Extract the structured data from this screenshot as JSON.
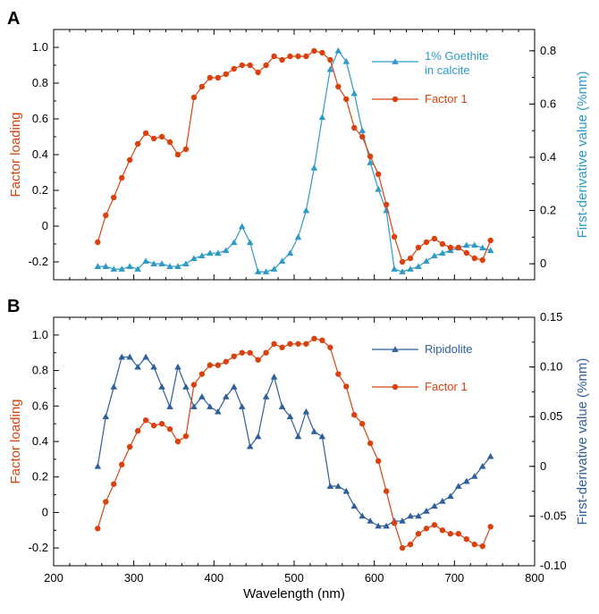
{
  "chart_data": [
    {
      "type": "line",
      "panel_label": "A",
      "ylabel_left": "Factor loading",
      "ylabel_right": "First-derivative value (%nm)",
      "xlabel": "",
      "xlim": [
        200,
        800
      ],
      "ylim_left": [
        -0.3,
        1.1
      ],
      "ylim_right": [
        -0.06,
        0.88
      ],
      "yticks_left": [
        "-0.2",
        "0",
        "0.2",
        "0.4",
        "0.6",
        "0.8",
        "1.0"
      ],
      "yticks_right": [
        "0",
        "0.2",
        "0.4",
        "0.6",
        "0.8"
      ],
      "legend_position": "top-right",
      "series": [
        {
          "name": "1% Goethite in calcite",
          "axis": "right",
          "marker": "triangle",
          "color": "#2E9BC6",
          "x": [
            255,
            265,
            275,
            285,
            295,
            305,
            315,
            325,
            335,
            345,
            355,
            365,
            375,
            385,
            395,
            405,
            415,
            425,
            435,
            445,
            455,
            465,
            475,
            485,
            495,
            505,
            515,
            525,
            535,
            545,
            555,
            565,
            575,
            585,
            595,
            605,
            615,
            625,
            635,
            645,
            655,
            665,
            675,
            685,
            695,
            705,
            715,
            725,
            735,
            745
          ],
          "y": [
            -0.01,
            -0.01,
            -0.02,
            -0.02,
            -0.01,
            -0.02,
            0.01,
            0.0,
            0.0,
            -0.01,
            -0.01,
            0.0,
            0.02,
            0.03,
            0.04,
            0.04,
            0.05,
            0.08,
            0.14,
            0.08,
            -0.03,
            -0.03,
            -0.02,
            0.01,
            0.04,
            0.1,
            0.2,
            0.36,
            0.55,
            0.73,
            0.8,
            0.76,
            0.64,
            0.5,
            0.38,
            0.28,
            0.2,
            -0.02,
            -0.03,
            -0.02,
            -0.01,
            0.01,
            0.03,
            0.04,
            0.05,
            0.06,
            0.07,
            0.07,
            0.06,
            0.05
          ]
        },
        {
          "name": "Factor 1",
          "axis": "left",
          "marker": "circle",
          "color": "#D9420F",
          "x": [
            255,
            265,
            275,
            285,
            295,
            305,
            315,
            325,
            335,
            345,
            355,
            365,
            375,
            385,
            395,
            405,
            415,
            425,
            435,
            445,
            455,
            465,
            475,
            485,
            495,
            505,
            515,
            525,
            535,
            545,
            555,
            565,
            575,
            585,
            595,
            605,
            615,
            625,
            635,
            645,
            655,
            665,
            675,
            685,
            695,
            705,
            715,
            725,
            735,
            745
          ],
          "y": [
            -0.09,
            0.06,
            0.16,
            0.27,
            0.37,
            0.46,
            0.52,
            0.49,
            0.5,
            0.47,
            0.4,
            0.43,
            0.72,
            0.78,
            0.83,
            0.83,
            0.85,
            0.88,
            0.9,
            0.9,
            0.86,
            0.9,
            0.95,
            0.93,
            0.95,
            0.95,
            0.95,
            0.98,
            0.97,
            0.93,
            0.78,
            0.71,
            0.55,
            0.5,
            0.39,
            0.29,
            0.12,
            -0.06,
            -0.2,
            -0.18,
            -0.12,
            -0.09,
            -0.07,
            -0.1,
            -0.12,
            -0.12,
            -0.15,
            -0.18,
            -0.19,
            -0.08
          ]
        }
      ]
    },
    {
      "type": "line",
      "panel_label": "B",
      "ylabel_left": "Factor loading",
      "ylabel_right": "First-derivative value (%nm)",
      "xlabel": "Wavelength (nm)",
      "xlim": [
        200,
        800
      ],
      "xticks": [
        "200",
        "300",
        "400",
        "500",
        "600",
        "700",
        "800"
      ],
      "ylim_left": [
        -0.3,
        1.1
      ],
      "ylim_right": [
        -0.1,
        0.15
      ],
      "yticks_left": [
        "-0.2",
        "0",
        "0.2",
        "0.4",
        "0.6",
        "0.8",
        "1.0"
      ],
      "yticks_right": [
        "-0.10",
        "-0.05",
        "0",
        "0.05",
        "0.10",
        "0.15"
      ],
      "legend_position": "top-right",
      "series": [
        {
          "name": "Ripidolite",
          "axis": "right",
          "marker": "triangle",
          "color": "#2F5F9B",
          "x": [
            255,
            265,
            275,
            285,
            295,
            305,
            315,
            325,
            335,
            345,
            355,
            365,
            375,
            385,
            395,
            405,
            415,
            425,
            435,
            445,
            455,
            465,
            475,
            485,
            495,
            505,
            515,
            525,
            535,
            545,
            555,
            565,
            575,
            585,
            595,
            605,
            615,
            625,
            635,
            645,
            655,
            665,
            675,
            685,
            695,
            705,
            715,
            725,
            735,
            745
          ],
          "y": [
            0.0,
            0.05,
            0.08,
            0.11,
            0.11,
            0.1,
            0.11,
            0.1,
            0.08,
            0.06,
            0.1,
            0.08,
            0.06,
            0.07,
            0.06,
            0.055,
            0.07,
            0.08,
            0.06,
            0.02,
            0.03,
            0.07,
            0.09,
            0.06,
            0.05,
            0.03,
            0.055,
            0.035,
            0.03,
            -0.02,
            -0.02,
            -0.025,
            -0.04,
            -0.05,
            -0.055,
            -0.06,
            -0.06,
            -0.055,
            -0.055,
            -0.05,
            -0.05,
            -0.045,
            -0.04,
            -0.035,
            -0.03,
            -0.02,
            -0.015,
            -0.01,
            0.0,
            0.01
          ]
        },
        {
          "name": "Factor 1",
          "axis": "left",
          "marker": "circle",
          "color": "#D9420F",
          "x": [
            255,
            265,
            275,
            285,
            295,
            305,
            315,
            325,
            335,
            345,
            355,
            365,
            375,
            385,
            395,
            405,
            415,
            425,
            435,
            445,
            455,
            465,
            475,
            485,
            495,
            505,
            515,
            525,
            535,
            545,
            555,
            565,
            575,
            585,
            595,
            605,
            615,
            625,
            635,
            645,
            655,
            665,
            675,
            685,
            695,
            705,
            715,
            725,
            735,
            745
          ],
          "y": [
            -0.09,
            0.06,
            0.16,
            0.27,
            0.37,
            0.46,
            0.52,
            0.49,
            0.5,
            0.47,
            0.4,
            0.43,
            0.72,
            0.78,
            0.83,
            0.83,
            0.85,
            0.88,
            0.9,
            0.9,
            0.86,
            0.9,
            0.95,
            0.93,
            0.95,
            0.95,
            0.95,
            0.98,
            0.97,
            0.93,
            0.78,
            0.71,
            0.55,
            0.5,
            0.39,
            0.29,
            0.12,
            -0.06,
            -0.2,
            -0.18,
            -0.12,
            -0.09,
            -0.07,
            -0.1,
            -0.12,
            -0.12,
            -0.15,
            -0.18,
            -0.19,
            -0.08
          ]
        }
      ]
    }
  ]
}
